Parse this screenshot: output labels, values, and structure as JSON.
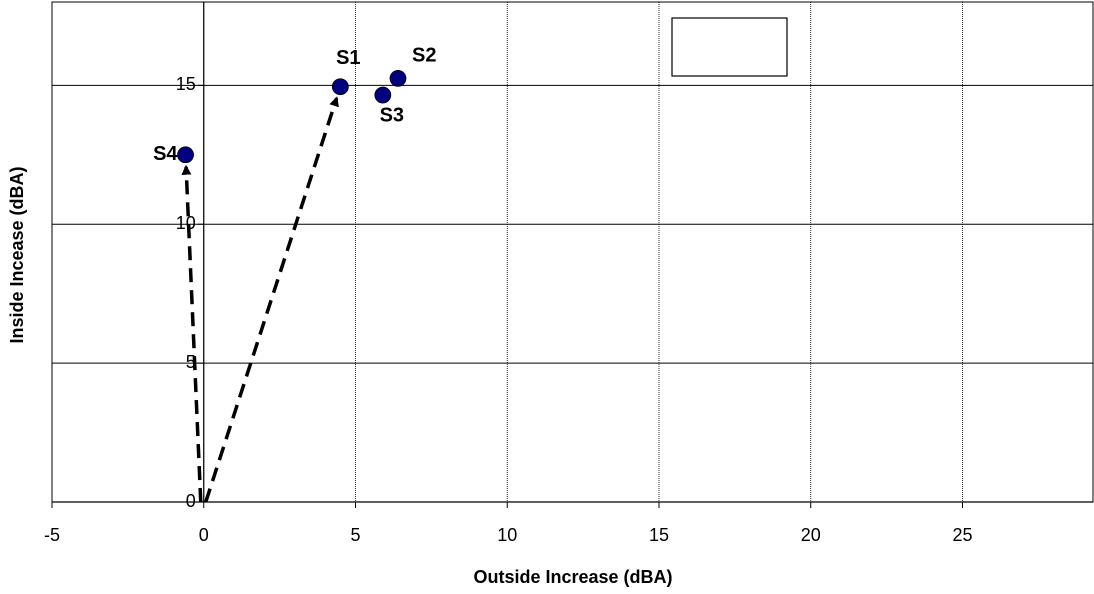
{
  "chart_data": {
    "type": "scatter",
    "x_label": "Outside Increase (dBA)",
    "y_label": "Inside Incease (dBA)",
    "point_labels": [
      "S1",
      "S2",
      "S3",
      "S4"
    ],
    "x": [
      4.5,
      6.4,
      5.9,
      -0.6
    ],
    "values": [
      14.95,
      15.25,
      14.65,
      12.5
    ],
    "color": "#000080",
    "xlim": [
      -5,
      29.3
    ],
    "xticks": [
      -5,
      0,
      5,
      10,
      15,
      20,
      25
    ],
    "ylim": [
      0,
      18
    ],
    "yticks": [
      0,
      5,
      10,
      15
    ],
    "grid": true
  }
}
